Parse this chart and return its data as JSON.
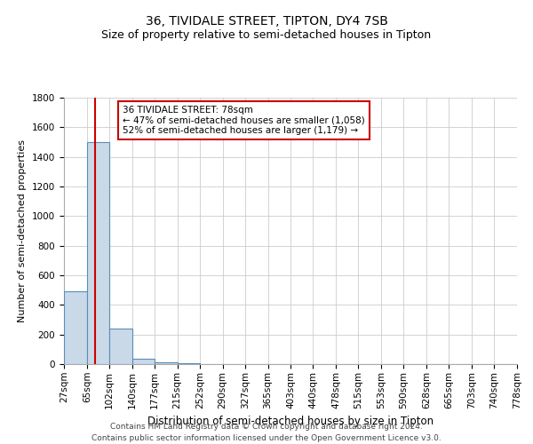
{
  "title": "36, TIVIDALE STREET, TIPTON, DY4 7SB",
  "subtitle": "Size of property relative to semi-detached houses in Tipton",
  "xlabel": "Distribution of semi-detached houses by size in Tipton",
  "ylabel": "Number of semi-detached properties",
  "footer_line1": "Contains HM Land Registry data © Crown copyright and database right 2024.",
  "footer_line2": "Contains public sector information licensed under the Open Government Licence v3.0.",
  "bin_edges": [
    27,
    65,
    102,
    140,
    177,
    215,
    252,
    290,
    327,
    365,
    403,
    440,
    478,
    515,
    553,
    590,
    628,
    665,
    703,
    740,
    778
  ],
  "bar_heights": [
    490,
    1500,
    240,
    35,
    10,
    5,
    0,
    0,
    0,
    0,
    0,
    0,
    0,
    0,
    0,
    0,
    0,
    0,
    0,
    0
  ],
  "bar_color": "#c9d9e8",
  "bar_edge_color": "#5b8db8",
  "property_size": 78,
  "property_line_color": "#cc0000",
  "annotation_line1": "36 TIVIDALE STREET: 78sqm",
  "annotation_line2": "← 47% of semi-detached houses are smaller (1,058)",
  "annotation_line3": "52% of semi-detached houses are larger (1,179) →",
  "annotation_box_color": "#ffffff",
  "annotation_box_edge": "#cc0000",
  "ylim": [
    0,
    1800
  ],
  "yticks": [
    0,
    200,
    400,
    600,
    800,
    1000,
    1200,
    1400,
    1600,
    1800
  ],
  "grid_color": "#cccccc",
  "background_color": "#ffffff",
  "title_fontsize": 10,
  "subtitle_fontsize": 9,
  "xlabel_fontsize": 8.5,
  "ylabel_fontsize": 8,
  "tick_fontsize": 7.5,
  "annotation_fontsize": 7.5,
  "footer_fontsize": 6.5
}
